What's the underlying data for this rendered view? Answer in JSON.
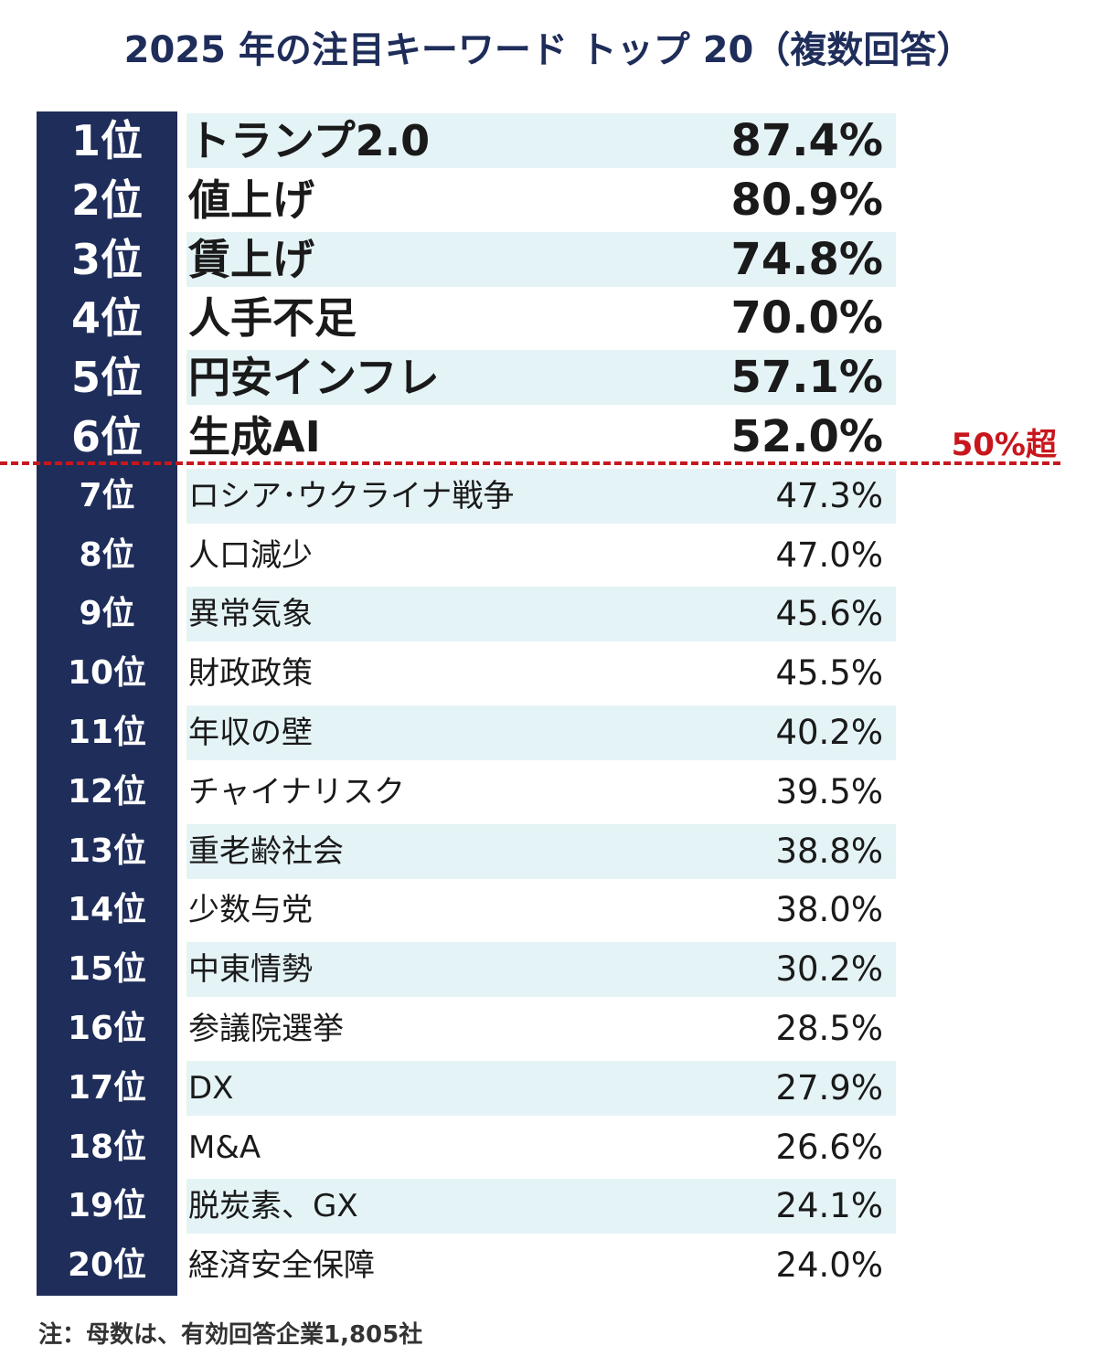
{
  "chart_data": {
    "type": "table",
    "title": "2025 年の注目キーワード トップ 20（複数回答）",
    "rows": [
      {
        "rank": "1位",
        "keyword": "トランプ2.0",
        "value_label": "87.4%",
        "value": 87.4
      },
      {
        "rank": "2位",
        "keyword": "値上げ",
        "value_label": "80.9%",
        "value": 80.9
      },
      {
        "rank": "3位",
        "keyword": "賃上げ",
        "value_label": "74.8%",
        "value": 74.8
      },
      {
        "rank": "4位",
        "keyword": "人手不足",
        "value_label": "70.0%",
        "value": 70.0
      },
      {
        "rank": "5位",
        "keyword": "円安インフレ",
        "value_label": "57.1%",
        "value": 57.1
      },
      {
        "rank": "6位",
        "keyword": "生成AI",
        "value_label": "52.0%",
        "value": 52.0
      },
      {
        "rank": "7位",
        "keyword": "ロシア･ウクライナ戦争",
        "value_label": "47.3%",
        "value": 47.3
      },
      {
        "rank": "8位",
        "keyword": "人口減少",
        "value_label": "47.0%",
        "value": 47.0
      },
      {
        "rank": "9位",
        "keyword": "異常気象",
        "value_label": "45.6%",
        "value": 45.6
      },
      {
        "rank": "10位",
        "keyword": "財政政策",
        "value_label": "45.5%",
        "value": 45.5
      },
      {
        "rank": "11位",
        "keyword": "年収の壁",
        "value_label": "40.2%",
        "value": 40.2
      },
      {
        "rank": "12位",
        "keyword": "チャイナリスク",
        "value_label": "39.5%",
        "value": 39.5
      },
      {
        "rank": "13位",
        "keyword": "重老齢社会",
        "value_label": "38.8%",
        "value": 38.8
      },
      {
        "rank": "14位",
        "keyword": "少数与党",
        "value_label": "38.0%",
        "value": 38.0
      },
      {
        "rank": "15位",
        "keyword": "中東情勢",
        "value_label": "30.2%",
        "value": 30.2
      },
      {
        "rank": "16位",
        "keyword": "参議院選挙",
        "value_label": "28.5%",
        "value": 28.5
      },
      {
        "rank": "17位",
        "keyword": "DX",
        "value_label": "27.9%",
        "value": 27.9
      },
      {
        "rank": "18位",
        "keyword": "M&A",
        "value_label": "26.6%",
        "value": 26.6
      },
      {
        "rank": "19位",
        "keyword": "脱炭素、GX",
        "value_label": "24.1%",
        "value": 24.1
      },
      {
        "rank": "20位",
        "keyword": "経済安全保障",
        "value_label": "24.0%",
        "value": 24.0
      }
    ],
    "threshold": {
      "label": "50%超",
      "value": 50
    },
    "footnote": "注：母数は、有効回答企業1,805社"
  },
  "colors": {
    "rank_column": "#1f2d5a",
    "row_shade": "#e4f3f6",
    "threshold": "#c8161d",
    "title": "#1f2d5a"
  }
}
